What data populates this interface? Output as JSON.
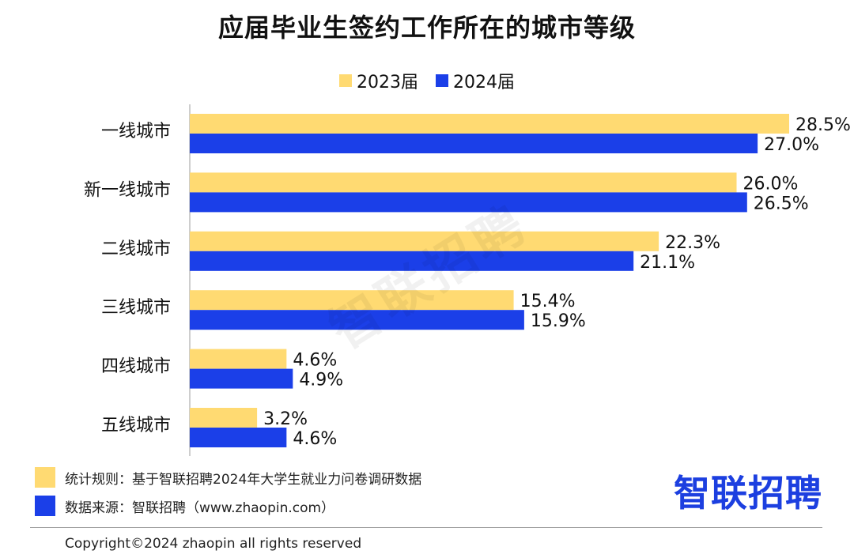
{
  "title": "应届毕业生签约工作所在的城市等级",
  "legend": [
    {
      "label": "2023届",
      "color": "#FFDA72"
    },
    {
      "label": "2024届",
      "color": "#1B3FE8"
    }
  ],
  "chart_data": {
    "type": "bar",
    "orientation": "horizontal",
    "title": "应届毕业生签约工作所在的城市等级",
    "categories": [
      "一线城市",
      "新一线城市",
      "二线城市",
      "三线城市",
      "四线城市",
      "五线城市"
    ],
    "series": [
      {
        "name": "2023届",
        "color": "#FFDA72",
        "values": [
          28.5,
          26.0,
          22.3,
          15.4,
          4.6,
          3.2
        ],
        "labels": [
          "28.5%",
          "26.0%",
          "22.3%",
          "15.4%",
          "4.6%",
          "3.2%"
        ]
      },
      {
        "name": "2024届",
        "color": "#1B3FE8",
        "values": [
          27.0,
          26.5,
          21.1,
          15.9,
          4.9,
          4.6
        ],
        "labels": [
          "27.0%",
          "26.5%",
          "21.1%",
          "15.9%",
          "4.9%",
          "4.6%"
        ]
      }
    ],
    "xlim": [
      0,
      28.5
    ],
    "unit": "%",
    "grid": false,
    "legend_position": "top-center"
  },
  "watermark": "智联招聘",
  "footer": {
    "notes": [
      {
        "text": "统计规则：基于智联招聘2024年大学生就业力问卷调研数据",
        "color": "#FFDA72"
      },
      {
        "text": "数据来源：智联招聘（www.zhaopin.com）",
        "color": "#1B3FE8"
      }
    ],
    "brand": "智联招聘",
    "copyright": "Copyright©2024 zhaopin all rights reserved"
  }
}
